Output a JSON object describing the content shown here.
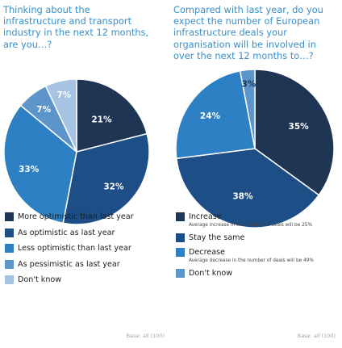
{
  "chart_data": [
    {
      "type": "pie",
      "title": "Thinking about the\ninfrastructure and transport\nindustry in the next 12 months,\nare you…?",
      "slices": [
        {
          "label": "More optimistic than last year",
          "value": 21,
          "data_label": "21%",
          "color": "#1e3554",
          "label_color": "#ffffff"
        },
        {
          "label": "As optimistic as last year",
          "value": 32,
          "data_label": "32%",
          "color": "#1d4f86",
          "label_color": "#ffffff"
        },
        {
          "label": "Less optimistic than last year",
          "value": 33,
          "data_label": "33%",
          "color": "#2c80c3",
          "label_color": "#ffffff"
        },
        {
          "label": "As pessimistic as last year",
          "value": 7,
          "data_label": "7%",
          "color": "#5d95cb",
          "label_color": "#ffffff"
        },
        {
          "label": "Don't know",
          "value": 7,
          "data_label": "7%",
          "color": "#a6c3e3",
          "label_color": "#ffffff"
        }
      ],
      "base_note": "Base: all (100)"
    },
    {
      "type": "pie",
      "title": "Compared with last year, do you\nexpect the number of European\ninfrastructure deals your\norganisation will be involved in\nover the next 12 months to…?",
      "slices": [
        {
          "label": "Increase",
          "note": "Average increase in the number of deals will be 25%",
          "value": 35,
          "data_label": "35%",
          "color": "#1e3554",
          "label_color": "#ffffff"
        },
        {
          "label": "Stay the same",
          "value": 38,
          "data_label": "38%",
          "color": "#1d4f86",
          "label_color": "#ffffff"
        },
        {
          "label": "Decrease",
          "note": "Average decrease in the number of deals will be 49%",
          "value": 24,
          "data_label": "24%",
          "color": "#2c80c3",
          "label_color": "#ffffff"
        },
        {
          "label": "Don't know",
          "value": 3,
          "data_label": "3%",
          "color": "#5d95cb",
          "label_color": "#1e3554"
        }
      ],
      "base_note": "Base: all (100)"
    }
  ]
}
